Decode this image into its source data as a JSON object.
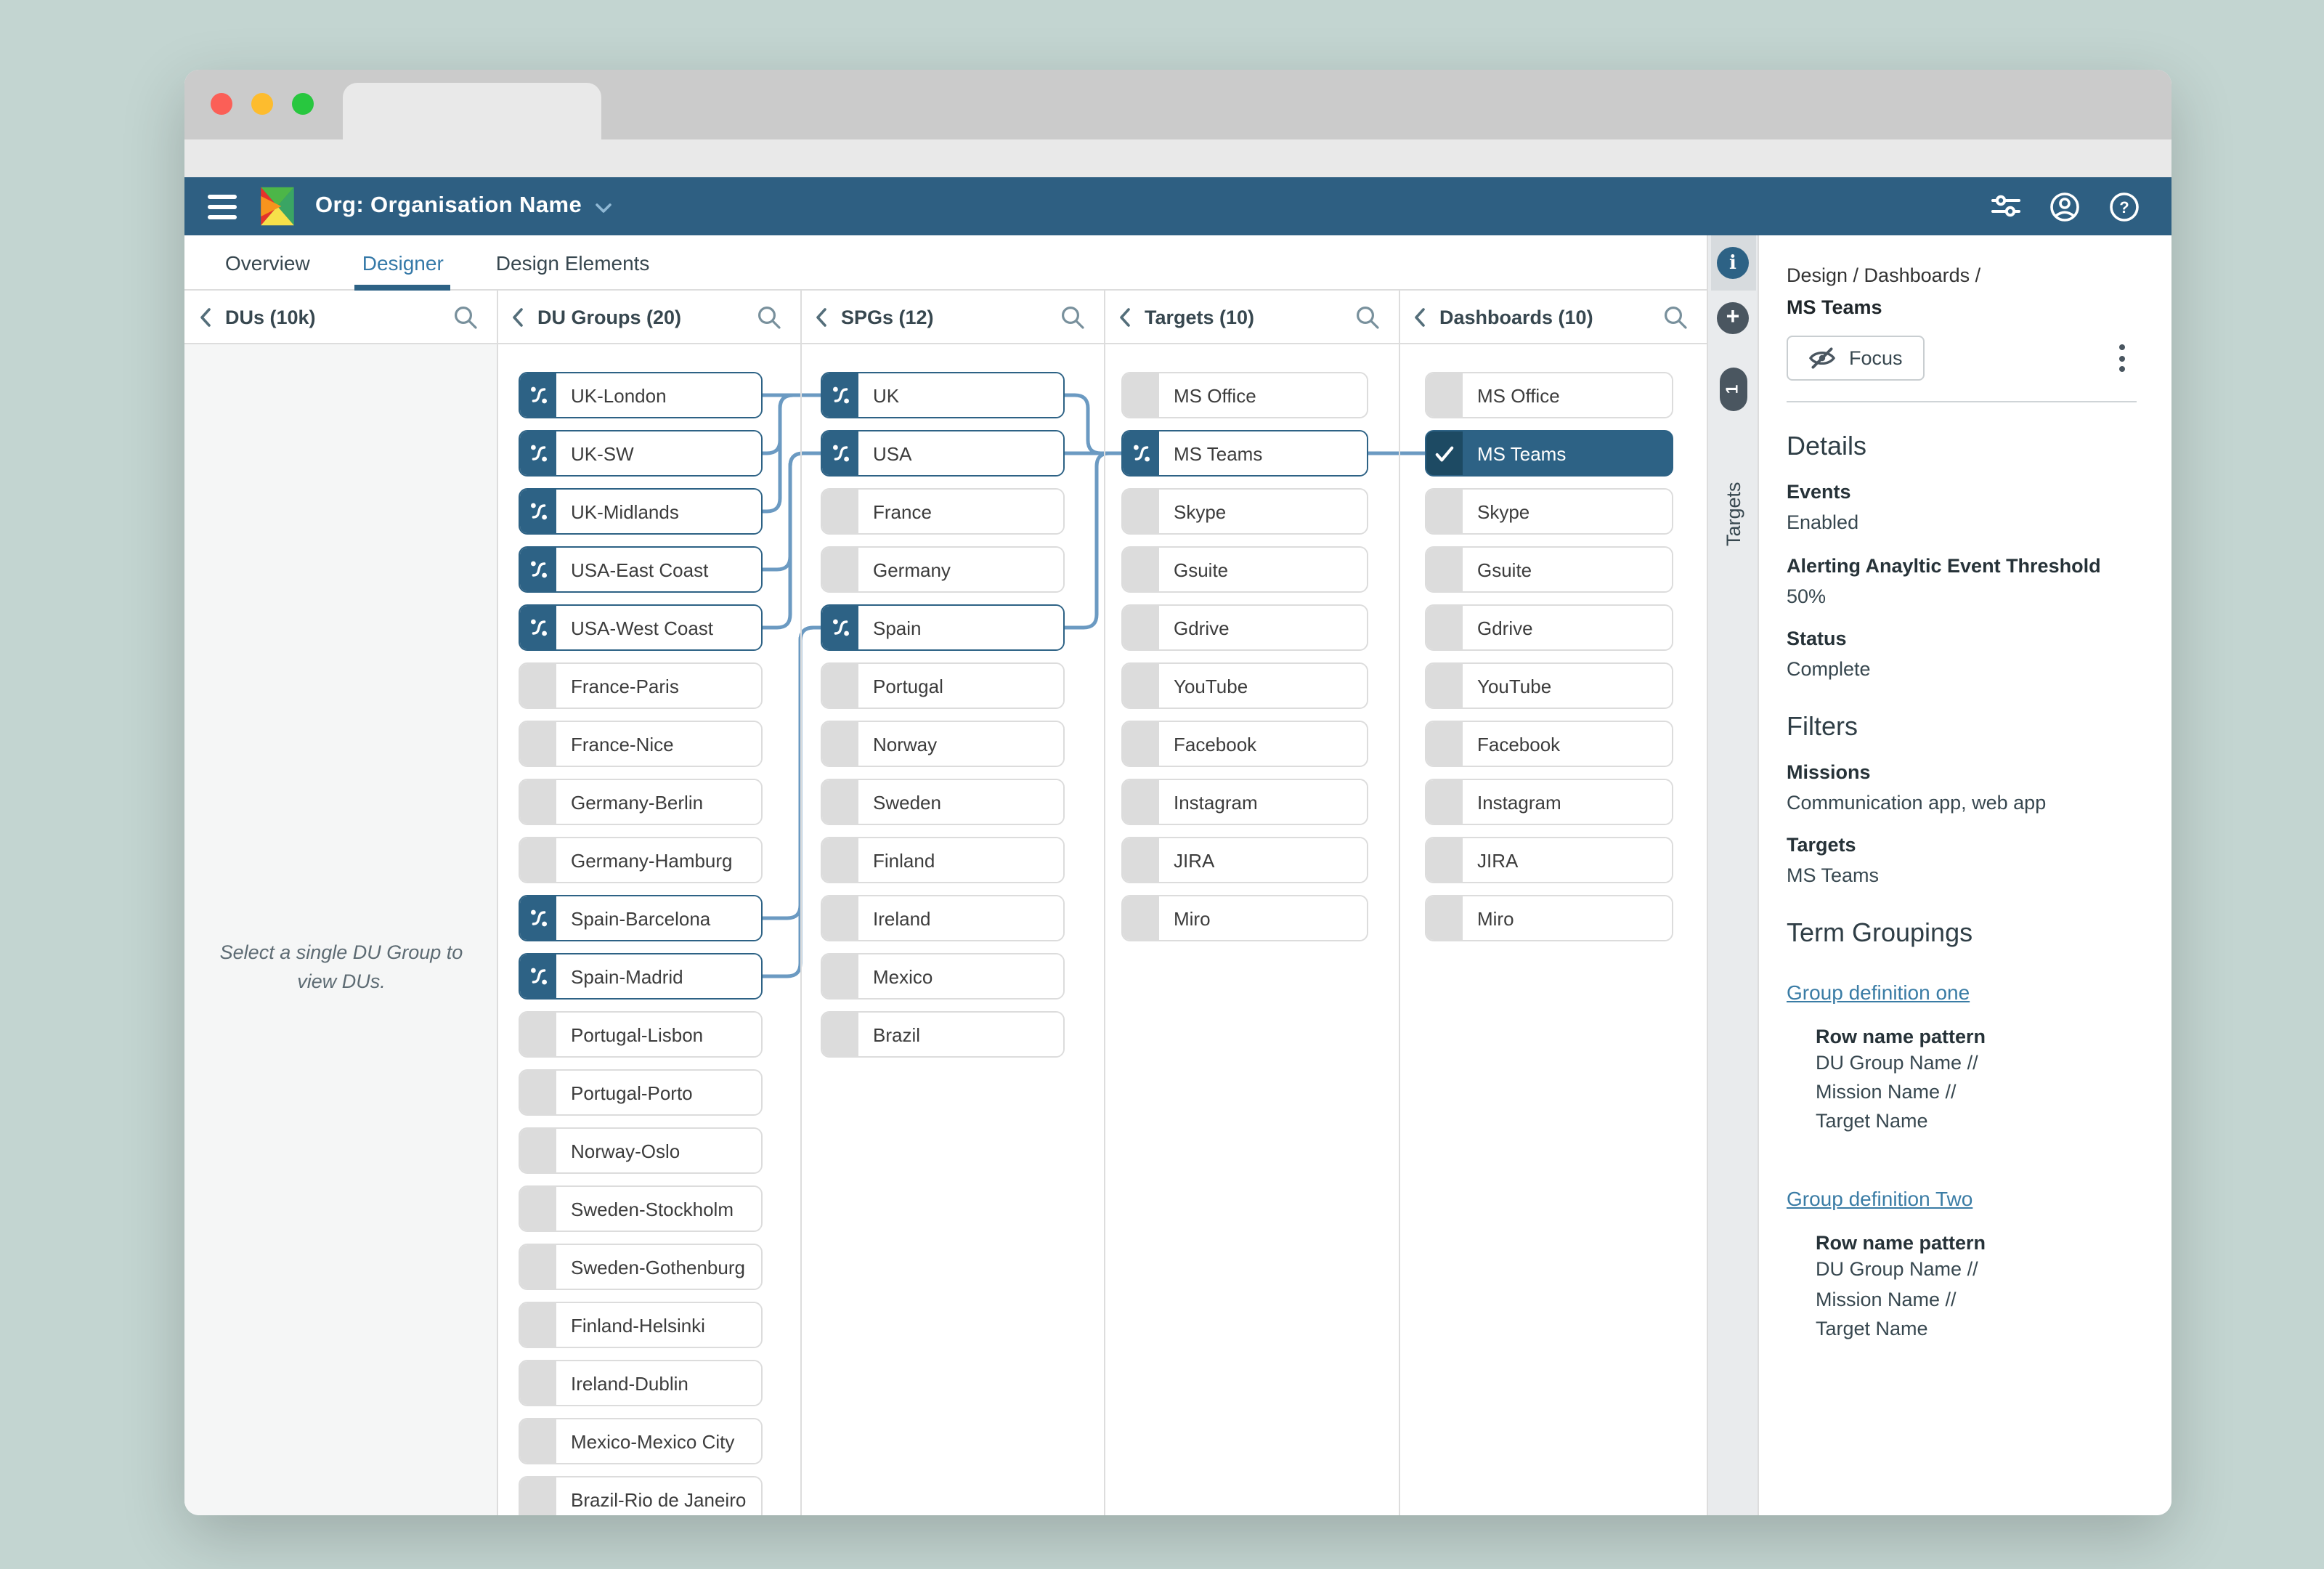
{
  "header": {
    "org_label": "Org: Organisation Name"
  },
  "tabs": [
    {
      "label": "Overview",
      "active": false
    },
    {
      "label": "Designer",
      "active": true
    },
    {
      "label": "Design Elements",
      "active": false
    }
  ],
  "columns": [
    {
      "title": "DUs (10k)",
      "message": "Select a single DU Group to view DUs.",
      "items": []
    },
    {
      "title": "DU Groups (20)",
      "items": [
        {
          "label": "UK-London",
          "state": "active"
        },
        {
          "label": "UK-SW",
          "state": "active"
        },
        {
          "label": "UK-Midlands",
          "state": "active"
        },
        {
          "label": "USA-East Coast",
          "state": "active"
        },
        {
          "label": "USA-West Coast",
          "state": "active"
        },
        {
          "label": "France-Paris",
          "state": "inactive"
        },
        {
          "label": "France-Nice",
          "state": "inactive"
        },
        {
          "label": "Germany-Berlin",
          "state": "inactive"
        },
        {
          "label": "Germany-Hamburg",
          "state": "inactive"
        },
        {
          "label": "Spain-Barcelona",
          "state": "active"
        },
        {
          "label": "Spain-Madrid",
          "state": "active"
        },
        {
          "label": "Portugal-Lisbon",
          "state": "inactive"
        },
        {
          "label": "Portugal-Porto",
          "state": "inactive"
        },
        {
          "label": "Norway-Oslo",
          "state": "inactive"
        },
        {
          "label": "Sweden-Stockholm",
          "state": "inactive"
        },
        {
          "label": "Sweden-Gothenburg",
          "state": "inactive"
        },
        {
          "label": "Finland-Helsinki",
          "state": "inactive"
        },
        {
          "label": "Ireland-Dublin",
          "state": "inactive"
        },
        {
          "label": "Mexico-Mexico City",
          "state": "inactive"
        },
        {
          "label": "Brazil-Rio de Janeiro",
          "state": "inactive"
        }
      ]
    },
    {
      "title": "SPGs (12)",
      "items": [
        {
          "label": "UK",
          "state": "active"
        },
        {
          "label": "USA",
          "state": "active"
        },
        {
          "label": "France",
          "state": "inactive"
        },
        {
          "label": "Germany",
          "state": "inactive"
        },
        {
          "label": "Spain",
          "state": "active"
        },
        {
          "label": "Portugal",
          "state": "inactive"
        },
        {
          "label": "Norway",
          "state": "inactive"
        },
        {
          "label": "Sweden",
          "state": "inactive"
        },
        {
          "label": "Finland",
          "state": "inactive"
        },
        {
          "label": "Ireland",
          "state": "inactive"
        },
        {
          "label": "Mexico",
          "state": "inactive"
        },
        {
          "label": "Brazil",
          "state": "inactive"
        }
      ]
    },
    {
      "title": "Targets (10)",
      "items": [
        {
          "label": "MS Office",
          "state": "inactive"
        },
        {
          "label": "MS Teams",
          "state": "active"
        },
        {
          "label": "Skype",
          "state": "inactive"
        },
        {
          "label": "Gsuite",
          "state": "inactive"
        },
        {
          "label": "Gdrive",
          "state": "inactive"
        },
        {
          "label": "YouTube",
          "state": "inactive"
        },
        {
          "label": "Facebook",
          "state": "inactive"
        },
        {
          "label": "Instagram",
          "state": "inactive"
        },
        {
          "label": "JIRA",
          "state": "inactive"
        },
        {
          "label": "Miro",
          "state": "inactive"
        }
      ]
    },
    {
      "title": "Dashboards (10)",
      "items": [
        {
          "label": "MS Office",
          "state": "inactive"
        },
        {
          "label": "MS Teams",
          "state": "selected"
        },
        {
          "label": "Skype",
          "state": "inactive"
        },
        {
          "label": "Gsuite",
          "state": "inactive"
        },
        {
          "label": "Gdrive",
          "state": "inactive"
        },
        {
          "label": "YouTube",
          "state": "inactive"
        },
        {
          "label": "Facebook",
          "state": "inactive"
        },
        {
          "label": "Instagram",
          "state": "inactive"
        },
        {
          "label": "JIRA",
          "state": "inactive"
        },
        {
          "label": "Miro",
          "state": "inactive"
        }
      ]
    }
  ],
  "connections": [
    {
      "from": [
        1,
        "UK-London"
      ],
      "to": [
        2,
        "UK"
      ]
    },
    {
      "from": [
        1,
        "UK-SW"
      ],
      "to": [
        2,
        "UK"
      ],
      "mid": 410
    },
    {
      "from": [
        1,
        "UK-Midlands"
      ],
      "to": [
        2,
        "UK"
      ],
      "mid": 410
    },
    {
      "from": [
        1,
        "USA-East Coast"
      ],
      "to": [
        2,
        "USA"
      ],
      "mid": 417
    },
    {
      "from": [
        1,
        "USA-West Coast"
      ],
      "to": [
        2,
        "USA"
      ],
      "mid": 417
    },
    {
      "from": [
        1,
        "Spain-Barcelona"
      ],
      "to": [
        2,
        "Spain"
      ],
      "mid": 424
    },
    {
      "from": [
        1,
        "Spain-Madrid"
      ],
      "to": [
        2,
        "Spain"
      ],
      "mid": 424
    },
    {
      "from": [
        2,
        "UK"
      ],
      "to": [
        3,
        "MS Teams"
      ],
      "mid": 622
    },
    {
      "from": [
        2,
        "USA"
      ],
      "to": [
        3,
        "MS Teams"
      ]
    },
    {
      "from": [
        2,
        "Spain"
      ],
      "to": [
        3,
        "MS Teams"
      ],
      "mid": 628
    },
    {
      "from": [
        3,
        "MS Teams"
      ],
      "to": [
        4,
        "MS Teams"
      ]
    }
  ],
  "side_strip": {
    "badge_count": "1",
    "tab_label": "Targets"
  },
  "panel": {
    "breadcrumb": "Design / Dashboards /",
    "title": "MS Teams",
    "focus_label": "Focus",
    "details": {
      "heading": "Details",
      "fields": [
        {
          "label": "Events",
          "value": "Enabled"
        },
        {
          "label": "Alerting Anayltic Event Threshold",
          "value": "50%"
        },
        {
          "label": "Status",
          "value": "Complete"
        }
      ]
    },
    "filters": {
      "heading": "Filters",
      "fields": [
        {
          "label": "Missions",
          "value": "Communication app, web app"
        },
        {
          "label": "Targets",
          "value": "MS Teams"
        }
      ]
    },
    "term_groupings": {
      "heading": "Term Groupings",
      "groups": [
        {
          "link": "Group definition one",
          "pattern_label": "Row name pattern",
          "pattern_lines": [
            "DU Group Name //",
            "Mission Name //",
            "Target Name"
          ]
        },
        {
          "link": "Group definition Two",
          "pattern_label": "Row name pattern",
          "pattern_lines": [
            "DU Group Name //",
            "Mission Name //",
            "Target Name"
          ]
        }
      ]
    }
  },
  "colors": {
    "app_header": "#2e5f82",
    "accent": "#2d6285",
    "selected_check_bg": "#1d4a63",
    "connection_line": "#6b9ac2",
    "link": "#3a7ca5",
    "inactive_gray": "#dcdcdc",
    "page_background": "#c3d5d1"
  }
}
